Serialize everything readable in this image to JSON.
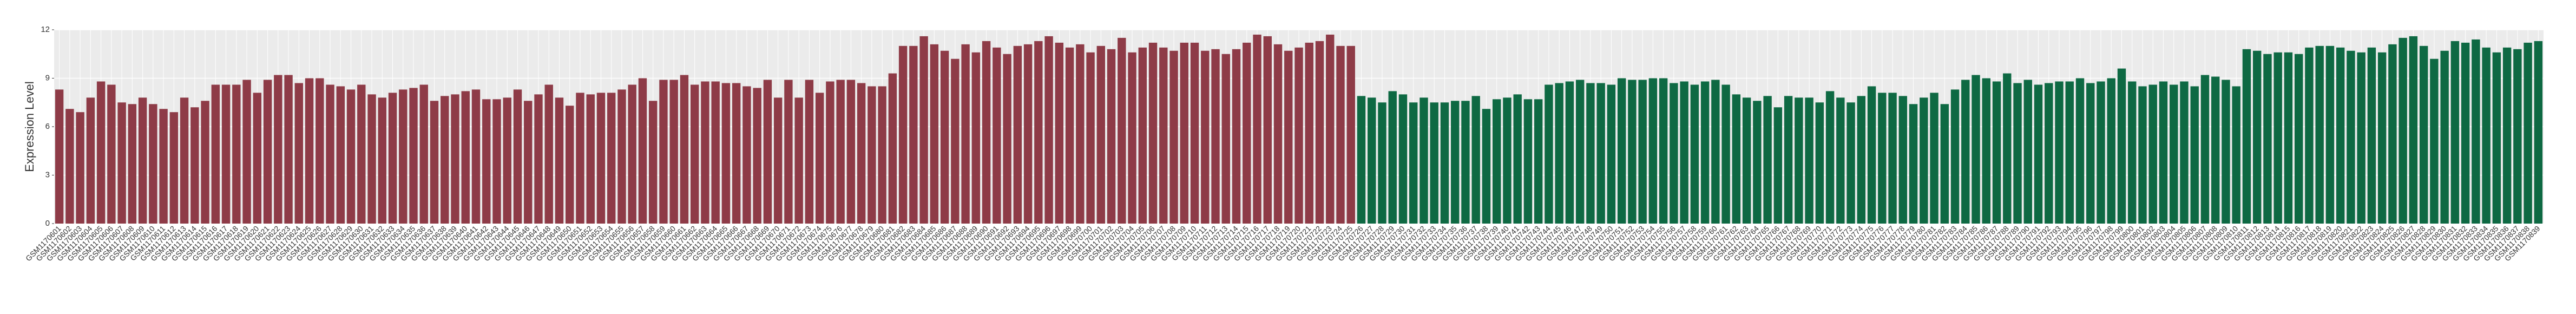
{
  "chart_data": {
    "type": "bar",
    "y_label": "Expression Level",
    "ylim": [
      0,
      12
    ],
    "yticks": [
      0,
      3,
      6,
      9,
      12
    ],
    "grid": true,
    "series": [
      {
        "color": "#8e3b47",
        "categories": [
          "GSM1170601",
          "GSM1170602",
          "GSM1170603",
          "GSM1170604",
          "GSM1170605",
          "GSM1170606",
          "GSM1170607",
          "GSM1170608",
          "GSM1170609",
          "GSM1170610",
          "GSM1170611",
          "GSM1170612",
          "GSM1170613",
          "GSM1170614",
          "GSM1170615",
          "GSM1170616",
          "GSM1170617",
          "GSM1170618",
          "GSM1170619",
          "GSM1170620",
          "GSM1170621",
          "GSM1170622",
          "GSM1170623",
          "GSM1170624",
          "GSM1170625",
          "GSM1170626",
          "GSM1170627",
          "GSM1170628",
          "GSM1170629",
          "GSM1170630",
          "GSM1170631",
          "GSM1170632",
          "GSM1170633",
          "GSM1170634",
          "GSM1170635",
          "GSM1170636",
          "GSM1170637",
          "GSM1170638",
          "GSM1170639",
          "GSM1170640",
          "GSM1170641",
          "GSM1170642",
          "GSM1170643",
          "GSM1170644",
          "GSM1170645",
          "GSM1170646",
          "GSM1170647",
          "GSM1170648",
          "GSM1170649",
          "GSM1170650",
          "GSM1170651",
          "GSM1170652",
          "GSM1170653",
          "GSM1170654",
          "GSM1170655",
          "GSM1170656",
          "GSM1170657",
          "GSM1170658",
          "GSM1170659",
          "GSM1170660",
          "GSM1170661",
          "GSM1170662",
          "GSM1170663",
          "GSM1170664",
          "GSM1170665",
          "GSM1170666",
          "GSM1170667",
          "GSM1170668",
          "GSM1170669",
          "GSM1170670",
          "GSM1170671",
          "GSM1170672",
          "GSM1170673",
          "GSM1170674",
          "GSM1170675",
          "GSM1170676",
          "GSM1170677",
          "GSM1170678",
          "GSM1170679",
          "GSM1170680",
          "GSM1170681",
          "GSM1170682",
          "GSM1170683",
          "GSM1170684",
          "GSM1170685",
          "GSM1170686",
          "GSM1170687",
          "GSM1170688",
          "GSM1170689",
          "GSM1170690",
          "GSM1170691",
          "GSM1170692",
          "GSM1170693",
          "GSM1170694",
          "GSM1170695",
          "GSM1170696",
          "GSM1170697",
          "GSM1170698",
          "GSM1170699",
          "GSM1170700",
          "GSM1170701",
          "GSM1170702",
          "GSM1170703",
          "GSM1170704",
          "GSM1170705",
          "GSM1170706",
          "GSM1170707",
          "GSM1170708",
          "GSM1170709",
          "GSM1170710",
          "GSM1170711",
          "GSM1170712",
          "GSM1170713",
          "GSM1170714",
          "GSM1170715",
          "GSM1170716",
          "GSM1170717",
          "GSM1170718",
          "GSM1170719",
          "GSM1170720",
          "GSM1170721",
          "GSM1170722",
          "GSM1170723",
          "GSM1170724",
          "GSM1170725"
        ],
        "values": [
          8.3,
          7.1,
          6.9,
          7.8,
          8.8,
          8.6,
          7.5,
          7.4,
          7.8,
          7.4,
          7.1,
          6.9,
          7.8,
          7.2,
          7.6,
          8.6,
          8.6,
          8.6,
          8.9,
          8.1,
          8.9,
          9.2,
          9.2,
          8.7,
          9.0,
          9.0,
          8.6,
          8.5,
          8.3,
          8.6,
          8.0,
          7.8,
          8.1,
          8.3,
          8.4,
          8.6,
          7.6,
          7.9,
          8.0,
          8.2,
          8.3,
          7.7,
          7.7,
          7.8,
          8.3,
          7.6,
          8.0,
          8.6,
          7.8,
          7.3,
          8.1,
          8.0,
          8.1,
          8.1,
          8.3,
          8.6,
          9.0,
          7.6,
          8.9,
          8.9,
          9.2,
          8.6,
          8.8,
          8.8,
          8.7,
          8.7,
          8.5,
          8.4,
          8.9,
          7.8,
          8.9,
          7.8,
          8.9,
          8.1,
          8.8,
          8.9,
          8.9,
          8.7,
          8.5,
          8.5,
          9.3,
          11.0,
          11.0,
          11.6,
          11.1,
          10.7,
          10.2,
          11.1,
          10.6,
          11.3,
          10.9,
          10.5,
          11.0,
          11.1,
          11.3,
          11.6,
          11.2,
          10.9,
          11.1,
          10.6,
          11.0,
          10.8,
          11.5,
          10.6,
          10.9,
          11.2,
          10.9,
          10.7,
          11.2,
          11.2,
          10.7,
          10.8,
          10.5,
          10.8,
          11.2,
          11.7,
          11.6,
          11.1,
          10.7,
          10.9,
          11.2,
          11.3,
          11.7,
          11.0,
          11.0
        ]
      },
      {
        "color": "#0e6943",
        "categories": [
          "GSM1170726",
          "GSM1170727",
          "GSM1170728",
          "GSM1170729",
          "GSM1170730",
          "GSM1170731",
          "GSM1170732",
          "GSM1170733",
          "GSM1170734",
          "GSM1170735",
          "GSM1170736",
          "GSM1170737",
          "GSM1170738",
          "GSM1170739",
          "GSM1170740",
          "GSM1170741",
          "GSM1170742",
          "GSM1170743",
          "GSM1170744",
          "GSM1170745",
          "GSM1170746",
          "GSM1170747",
          "GSM1170748",
          "GSM1170749",
          "GSM1170750",
          "GSM1170751",
          "GSM1170752",
          "GSM1170753",
          "GSM1170754",
          "GSM1170755",
          "GSM1170756",
          "GSM1170757",
          "GSM1170758",
          "GSM1170759",
          "GSM1170760",
          "GSM1170761",
          "GSM1170762",
          "GSM1170763",
          "GSM1170764",
          "GSM1170765",
          "GSM1170766",
          "GSM1170767",
          "GSM1170768",
          "GSM1170769",
          "GSM1170770",
          "GSM1170771",
          "GSM1170772",
          "GSM1170773",
          "GSM1170774",
          "GSM1170775",
          "GSM1170776",
          "GSM1170777",
          "GSM1170778",
          "GSM1170779",
          "GSM1170780",
          "GSM1170781",
          "GSM1170782",
          "GSM1170783",
          "GSM1170784",
          "GSM1170785",
          "GSM1170786",
          "GSM1170787",
          "GSM1170788",
          "GSM1170789",
          "GSM1170790",
          "GSM1170791",
          "GSM1170792",
          "GSM1170793",
          "GSM1170794",
          "GSM1170795",
          "GSM1170796",
          "GSM1170797",
          "GSM1170798",
          "GSM1170799",
          "GSM1170800",
          "GSM1170801",
          "GSM1170802",
          "GSM1170803",
          "GSM1170804",
          "GSM1170805",
          "GSM1170806",
          "GSM1170807",
          "GSM1170808",
          "GSM1170809",
          "GSM1170810",
          "GSM1170811",
          "GSM1170812",
          "GSM1170813",
          "GSM1170814",
          "GSM1170815",
          "GSM1170816",
          "GSM1170817",
          "GSM1170818",
          "GSM1170819",
          "GSM1170820",
          "GSM1170821",
          "GSM1170822",
          "GSM1170823",
          "GSM1170824",
          "GSM1170825",
          "GSM1170826",
          "GSM1170827",
          "GSM1170828",
          "GSM1170829",
          "GSM1170830",
          "GSM1170831",
          "GSM1170832",
          "GSM1170833",
          "GSM1170834",
          "GSM1170835",
          "GSM1170836",
          "GSM1170837",
          "GSM1170838",
          "GSM1170839"
        ],
        "values": [
          7.9,
          7.8,
          7.5,
          8.2,
          8.0,
          7.5,
          7.8,
          7.5,
          7.5,
          7.6,
          7.6,
          7.9,
          7.1,
          7.7,
          7.8,
          8.0,
          7.7,
          7.7,
          8.6,
          8.7,
          8.8,
          8.9,
          8.7,
          8.7,
          8.6,
          9.0,
          8.9,
          8.9,
          9.0,
          9.0,
          8.7,
          8.8,
          8.6,
          8.8,
          8.9,
          8.6,
          8.0,
          7.8,
          7.6,
          7.9,
          7.2,
          7.9,
          7.8,
          7.8,
          7.5,
          8.2,
          7.8,
          7.5,
          7.9,
          8.5,
          8.1,
          8.1,
          7.9,
          7.4,
          7.8,
          8.1,
          7.4,
          8.3,
          8.9,
          9.2,
          9.0,
          8.8,
          9.3,
          8.7,
          8.9,
          8.6,
          8.7,
          8.8,
          8.8,
          9.0,
          8.7,
          8.8,
          9.0,
          9.6,
          8.8,
          8.5,
          8.6,
          8.8,
          8.6,
          8.8,
          8.5,
          9.2,
          9.1,
          8.9,
          8.5,
          10.8,
          10.7,
          10.5,
          10.6,
          10.6,
          10.5,
          10.9,
          11.0,
          11.0,
          10.9,
          10.7,
          10.6,
          10.9,
          10.6,
          11.1,
          11.5,
          11.6,
          11.0,
          10.2,
          10.7,
          11.3,
          11.2,
          11.4,
          10.9,
          10.6,
          10.9,
          10.8,
          11.2,
          11.3
        ]
      }
    ]
  }
}
